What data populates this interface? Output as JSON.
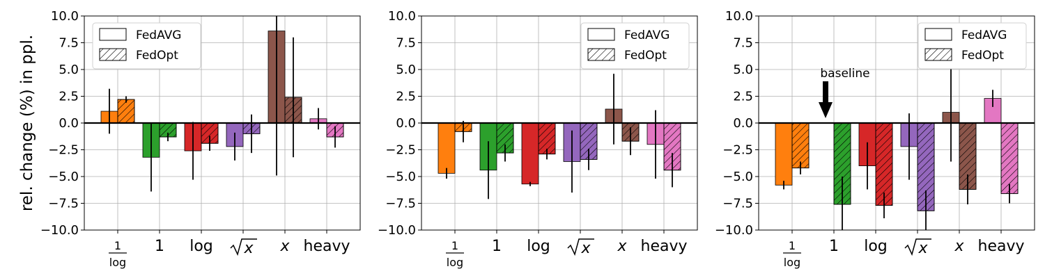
{
  "figure": {
    "ylabel": "rel. change (%) in ppl."
  },
  "colors": {
    "1/log": "#ff7f0e",
    "1": "#2ca02c",
    "log": "#d62728",
    "sqrt": "#9467bd",
    "x": "#8c564b",
    "heavy": "#e377c2"
  },
  "chart_data": [
    {
      "type": "bar",
      "categories": [
        "1/log",
        "1",
        "log",
        "sqrt(x)",
        "x",
        "heavy"
      ],
      "ylim": [
        -10.0,
        10.0
      ],
      "yticks": [
        "−10.0",
        "−7.5",
        "−5.0",
        "−2.5",
        "0.0",
        "2.5",
        "5.0",
        "7.5",
        "10.0"
      ],
      "ytick_values": [
        -10.0,
        -7.5,
        -5.0,
        -2.5,
        0.0,
        2.5,
        5.0,
        7.5,
        10.0
      ],
      "legend": {
        "entries": [
          "FedAVG",
          "FedOpt"
        ],
        "placement": "top-left"
      },
      "series": [
        {
          "name": "FedAVG",
          "values": [
            1.1,
            -3.2,
            -2.6,
            -2.2,
            8.6,
            0.4
          ],
          "errors": [
            2.1,
            3.2,
            2.7,
            1.3,
            13.5,
            1.0
          ]
        },
        {
          "name": "FedOpt",
          "values": [
            2.2,
            -1.3,
            -1.9,
            -1.0,
            2.4,
            -1.3
          ],
          "errors": [
            0.3,
            0.4,
            0.7,
            1.8,
            5.6,
            1.0
          ]
        }
      ],
      "annotation": null
    },
    {
      "type": "bar",
      "categories": [
        "1/log",
        "1",
        "log",
        "sqrt(x)",
        "x",
        "heavy"
      ],
      "ylim": [
        -10.0,
        10.0
      ],
      "yticks": [
        "−10.0",
        "−7.5",
        "−5.0",
        "−2.5",
        "0.0",
        "2.5",
        "5.0",
        "7.5",
        "10.0"
      ],
      "ytick_values": [
        -10.0,
        -7.5,
        -5.0,
        -2.5,
        0.0,
        2.5,
        5.0,
        7.5,
        10.0
      ],
      "legend": {
        "entries": [
          "FedAVG",
          "FedOpt"
        ],
        "placement": "top-right"
      },
      "series": [
        {
          "name": "FedAVG",
          "values": [
            -4.7,
            -4.4,
            -5.7,
            -3.6,
            1.3,
            -2.0
          ],
          "errors": [
            0.5,
            2.7,
            0.2,
            2.9,
            3.3,
            3.2
          ]
        },
        {
          "name": "FedOpt",
          "values": [
            -0.8,
            -2.8,
            -2.9,
            -3.4,
            -1.7,
            -4.4
          ],
          "errors": [
            1.0,
            0.8,
            0.5,
            1.0,
            1.3,
            1.6
          ]
        }
      ],
      "annotation": null
    },
    {
      "type": "bar",
      "categories": [
        "1/log",
        "1",
        "log",
        "sqrt(x)",
        "x",
        "heavy"
      ],
      "ylim": [
        -10.0,
        10.0
      ],
      "yticks": [
        "−10.0",
        "−7.5",
        "−5.0",
        "−2.5",
        "0.0",
        "2.5",
        "5.0",
        "7.5",
        "10.0"
      ],
      "ytick_values": [
        -10.0,
        -7.5,
        -5.0,
        -2.5,
        0.0,
        2.5,
        5.0,
        7.5,
        10.0
      ],
      "legend": {
        "entries": [
          "FedAVG",
          "FedOpt"
        ],
        "placement": "top-right"
      },
      "series": [
        {
          "name": "FedAVG",
          "values": [
            -5.8,
            null,
            -4.0,
            -2.2,
            1.0,
            2.3
          ],
          "errors": [
            0.4,
            null,
            2.2,
            3.1,
            4.6,
            0.8
          ]
        },
        {
          "name": "FedOpt",
          "values": [
            -4.2,
            -7.6,
            -7.7,
            -8.2,
            -6.2,
            -6.6
          ],
          "errors": [
            0.6,
            2.6,
            1.2,
            1.9,
            1.4,
            0.9
          ]
        }
      ],
      "annotation": {
        "text": "baseline",
        "category": "1",
        "arrow": "down"
      }
    }
  ]
}
